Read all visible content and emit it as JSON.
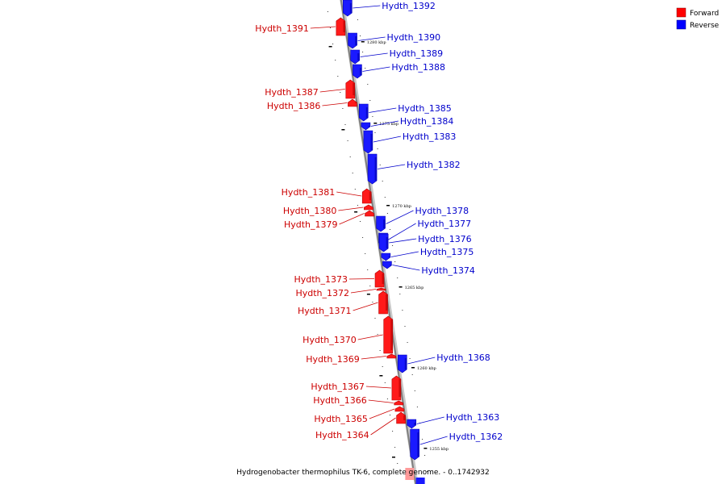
{
  "caption": "Hydrogenobacter thermophilus TK-6, complete genome. - 0..1742932",
  "legend": {
    "forward": {
      "label": "Forward",
      "color": "#ff0000"
    },
    "reverse": {
      "label": "Reverse",
      "color": "#0000ff"
    }
  },
  "kbp_labels": [
    "1280 kbp",
    "1275 kbp",
    "1270 kbp",
    "1265 kbp",
    "1260 kbp",
    "1255 kbp"
  ],
  "forward_genes": [
    "Hydth_1391",
    "Hydth_1387",
    "Hydth_1386",
    "Hydth_1381",
    "Hydth_1380",
    "Hydth_1379",
    "Hydth_1373",
    "Hydth_1372",
    "Hydth_1371",
    "Hydth_1370",
    "Hydth_1369",
    "Hydth_1367",
    "Hydth_1366",
    "Hydth_1365",
    "Hydth_1364"
  ],
  "reverse_genes": [
    "Hydth_1392",
    "Hydth_1390",
    "Hydth_1389",
    "Hydth_1388",
    "Hydth_1385",
    "Hydth_1384",
    "Hydth_1383",
    "Hydth_1382",
    "Hydth_1378",
    "Hydth_1377",
    "Hydth_1376",
    "Hydth_1375",
    "Hydth_1374",
    "Hydth_1368",
    "Hydth_1363",
    "Hydth_1362"
  ]
}
